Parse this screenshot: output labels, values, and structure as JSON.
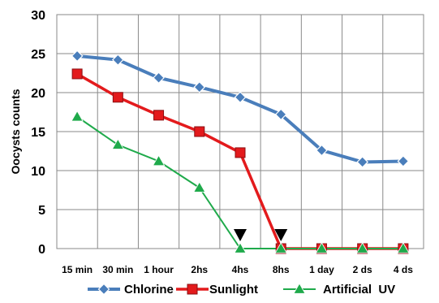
{
  "chart_data": {
    "type": "line",
    "categories": [
      "15 min",
      "30 min",
      "1 hour",
      "2hs",
      "4hs",
      "8hs",
      "1 day",
      "2 ds",
      "4 ds"
    ],
    "ylabel": "Oocysts counts",
    "xlabel": "",
    "ylim": [
      0,
      30
    ],
    "yticks": [
      0,
      5,
      10,
      15,
      20,
      25,
      30
    ],
    "grid": true,
    "legend_position": "bottom",
    "series": [
      {
        "name": "Chlorine",
        "values": [
          24.7,
          24.2,
          21.9,
          20.7,
          19.4,
          17.2,
          12.6,
          11.1,
          11.2
        ],
        "color": "#4a7ebb",
        "marker": "diamond"
      },
      {
        "name": "Sunlight",
        "values": [
          22.4,
          19.4,
          17.1,
          15.0,
          12.3,
          0,
          0,
          0,
          0
        ],
        "color": "#e31a1c",
        "marker": "square"
      },
      {
        "name": "Artificial  UV",
        "values": [
          16.9,
          13.3,
          11.2,
          7.8,
          0,
          0,
          0,
          0,
          0
        ],
        "color": "#1faa4b",
        "marker": "triangle"
      }
    ],
    "annotations": [
      {
        "type": "arrow-down",
        "category": "4hs",
        "color": "#000000"
      },
      {
        "type": "arrow-down",
        "category": "8hs",
        "color": "#000000"
      }
    ]
  }
}
